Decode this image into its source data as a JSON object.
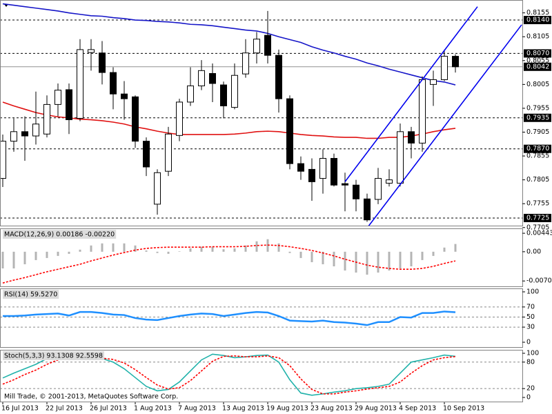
{
  "chart_data": [
    {
      "type": "candlestick",
      "categories": [
        "16 Jul 2013",
        null,
        null,
        null,
        "22 Jul 2013",
        null,
        null,
        null,
        "26 Jul 2013",
        null,
        null,
        null,
        "1 Aug 2013",
        null,
        null,
        null,
        "7 Aug 2013",
        null,
        null,
        null,
        "13 Aug 2013",
        null,
        null,
        null,
        "19 Aug 2013",
        null,
        null,
        null,
        "23 Aug 2013",
        null,
        null,
        null,
        "29 Aug 2013",
        null,
        null,
        null,
        "4 Sep 2013",
        null,
        null,
        null,
        "10 Sep 2013",
        null
      ],
      "open": [
        0.7808,
        0.7886,
        0.7906,
        0.7897,
        0.7901,
        0.7963,
        0.7994,
        0.7934,
        0.8072,
        0.8071,
        0.803,
        0.7985,
        0.7979,
        0.7886,
        0.7754,
        0.7823,
        0.7898,
        0.7968,
        0.8002,
        0.8028,
        0.8004,
        0.7957,
        0.8027,
        0.8071,
        0.8108,
        0.8066,
        0.7975,
        0.7839,
        0.7827,
        0.7808,
        0.785,
        0.7797,
        0.7794,
        0.7765,
        0.7764,
        0.7798,
        0.7798,
        0.7906,
        0.7882,
        0.8005,
        0.8015,
        0.8064
      ],
      "high": [
        0.79,
        0.7934,
        0.7938,
        0.799,
        0.7982,
        0.8007,
        0.8007,
        0.81,
        0.81,
        0.8096,
        0.8041,
        0.8012,
        0.7982,
        0.7894,
        0.7827,
        0.7916,
        0.7975,
        0.8041,
        0.8056,
        0.8049,
        0.8011,
        0.8049,
        0.81,
        0.8115,
        0.8159,
        0.8078,
        0.7982,
        0.7854,
        0.785,
        0.7869,
        0.786,
        0.782,
        0.7805,
        0.7776,
        0.783,
        0.7827,
        0.7923,
        0.7916,
        0.8022,
        0.8034,
        0.8078,
        0.8068
      ],
      "low": [
        0.779,
        0.7864,
        0.7845,
        0.7879,
        0.7894,
        0.7938,
        0.7901,
        0.7928,
        0.8034,
        0.8005,
        0.7953,
        0.7931,
        0.7872,
        0.7813,
        0.7732,
        0.7813,
        0.7886,
        0.796,
        0.7993,
        0.7968,
        0.7934,
        0.7953,
        0.8019,
        0.8049,
        0.8049,
        0.7946,
        0.7827,
        0.7805,
        0.7761,
        0.7776,
        0.7791,
        0.7739,
        0.7739,
        0.7717,
        0.7754,
        0.7791,
        0.7791,
        0.785,
        0.7864,
        0.796,
        0.8012,
        0.803
      ],
      "close": [
        0.7886,
        0.7906,
        0.7897,
        0.7922,
        0.7963,
        0.7993,
        0.7931,
        0.8078,
        0.8078,
        0.803,
        0.7985,
        0.7975,
        0.7886,
        0.7832,
        0.782,
        0.7901,
        0.7968,
        0.8002,
        0.8034,
        0.8007,
        0.796,
        0.8024,
        0.8071,
        0.81,
        0.8066,
        0.7975,
        0.7839,
        0.7823,
        0.7801,
        0.785,
        0.7794,
        0.7794,
        0.7765,
        0.7721,
        0.7808,
        0.7805,
        0.7906,
        0.7882,
        0.8015,
        0.8015,
        0.8064,
        0.8042
      ],
      "up_color": "#ffffff",
      "down_color": "#000000",
      "lines": [
        {
          "color": "#1515c8",
          "values": [
            0.8174,
            0.8171,
            0.8168,
            0.8165,
            0.8162,
            0.8159,
            0.8155,
            0.8152,
            0.8149,
            0.8148,
            0.8145,
            0.8143,
            0.814,
            0.8139,
            0.8137,
            0.8136,
            0.8134,
            0.8131,
            0.813,
            0.8128,
            0.8125,
            0.8122,
            0.8119,
            0.8117,
            0.8112,
            0.8105,
            0.8099,
            0.8093,
            0.8084,
            0.8077,
            0.8071,
            0.8064,
            0.8058,
            0.805,
            0.8044,
            0.8037,
            0.8031,
            0.8025,
            0.8019,
            0.8013,
            0.801,
            0.8004
          ]
        },
        {
          "color": "#e01010",
          "values": [
            0.7968,
            0.796,
            0.7953,
            0.7946,
            0.7941,
            0.7937,
            0.7935,
            0.7932,
            0.7931,
            0.7929,
            0.7926,
            0.7922,
            0.7916,
            0.7912,
            0.7907,
            0.7903,
            0.79,
            0.79,
            0.79,
            0.79,
            0.79,
            0.7901,
            0.7903,
            0.7906,
            0.7907,
            0.7906,
            0.7903,
            0.79,
            0.7898,
            0.7897,
            0.7895,
            0.7894,
            0.7894,
            0.7892,
            0.7892,
            0.7894,
            0.7894,
            0.7897,
            0.7901,
            0.7906,
            0.791,
            0.7913
          ]
        }
      ],
      "levels": [
        {
          "value": 0.814,
          "label": "0.8140"
        },
        {
          "value": 0.807,
          "label": "0.8070"
        },
        0.7935,
        {
          "value": 0.787,
          "label": "0.7870"
        },
        0.7725
      ],
      "last": 0.8042,
      "trendlines": [
        [
          [
            31,
            0.7801
          ],
          [
            43,
            0.8168
          ]
        ],
        [
          [
            33,
            0.7704
          ],
          [
            47,
            0.813
          ]
        ]
      ],
      "trendline_color": "#0000ee",
      "ylim": [
        0.7709,
        0.8182
      ],
      "yticks": [
        0.8155,
        0.8105,
        0.8055,
        0.8005,
        0.7955,
        0.7905,
        0.7855,
        0.7805,
        0.7755,
        0.7705
      ],
      "footer": "Mill Trade, © 2001-2013, MetaQuotes Software Corp."
    },
    {
      "type": "macd",
      "title": "MACD(12,26,9) 0.00186 -0.00220",
      "values": [
        -0.004,
        -0.004,
        -0.003,
        -0.002,
        -0.0015,
        -0.001,
        -0.0005,
        0.0005,
        0.0015,
        0.002,
        0.002,
        0.002,
        0.0015,
        0.0003,
        -0.0003,
        -0.0005,
        0.0001,
        0.0008,
        0.0012,
        0.0012,
        0.0006,
        0.0008,
        0.0015,
        0.0025,
        0.003,
        0.002,
        -0.0003,
        -0.0015,
        -0.0025,
        -0.003,
        -0.0035,
        -0.0045,
        -0.005,
        -0.0055,
        -0.005,
        -0.0045,
        -0.004,
        -0.0035,
        -0.002,
        -0.001,
        0.001,
        0.00186
      ],
      "color": "#b4b4b4",
      "lines": [
        {
          "color": "#ff0000",
          "dash": true,
          "values": [
            -0.0075,
            -0.0068,
            -0.0062,
            -0.0055,
            -0.0048,
            -0.0042,
            -0.0036,
            -0.003,
            -0.0022,
            -0.0015,
            -0.0008,
            -0.0002,
            0.0004,
            0.0008,
            0.001,
            0.0011,
            0.0011,
            0.0011,
            0.0011,
            0.0012,
            0.0012,
            0.0012,
            0.0013,
            0.0015,
            0.0016,
            0.0015,
            0.0012,
            0.0008,
            0.0003,
            -0.0003,
            -0.001,
            -0.0018,
            -0.0025,
            -0.0032,
            -0.0037,
            -0.004,
            -0.0042,
            -0.0042,
            -0.004,
            -0.0035,
            -0.0028,
            -0.0022
          ]
        }
      ],
      "ylim": [
        -0.0083,
        0.0056
      ],
      "yticks": [
        0.00443,
        {
          "value": 0,
          "label": "0.00"
        },
        -0.00701
      ]
    },
    {
      "type": "line",
      "title": "RSI(14) 59.5270",
      "lines": [
        {
          "color": "#1e8fff",
          "width": 2.5,
          "values": [
            52,
            52,
            53,
            55,
            56,
            57,
            53,
            60,
            60,
            58,
            55,
            54,
            48,
            45,
            44,
            48,
            52,
            55,
            57,
            56,
            52,
            55,
            58,
            60,
            59,
            52,
            43,
            42,
            41,
            43,
            40,
            39,
            37,
            34,
            40,
            40,
            50,
            49,
            58,
            58,
            61,
            59.527
          ]
        }
      ],
      "levels": [
        70,
        50,
        30
      ],
      "ylim": [
        -9.6,
        106.8
      ],
      "yticks": [
        100,
        70,
        50,
        30,
        0
      ]
    },
    {
      "type": "line",
      "title": "Stoch(5,3,3) 93.1308 92.5598",
      "lines": [
        {
          "color": "#20b2aa",
          "values": [
            44,
            55,
            65,
            75,
            88,
            90,
            92,
            88,
            90,
            88,
            80,
            65,
            45,
            25,
            15,
            18,
            35,
            60,
            85,
            98,
            95,
            90,
            92,
            95,
            96,
            80,
            40,
            10,
            5,
            8,
            12,
            15,
            20,
            22,
            25,
            30,
            55,
            80,
            85,
            90,
            96,
            93.1308
          ]
        },
        {
          "color": "#ff0000",
          "dash": true,
          "values": [
            30,
            40,
            52,
            62,
            75,
            85,
            90,
            90,
            90,
            89,
            86,
            78,
            63,
            45,
            28,
            19,
            22,
            38,
            60,
            82,
            93,
            94,
            92,
            92,
            94,
            90,
            72,
            42,
            18,
            8,
            8,
            12,
            15,
            19,
            22,
            25,
            35,
            55,
            72,
            85,
            90,
            92.5598
          ]
        }
      ],
      "levels": [
        80,
        20
      ],
      "ylim": [
        -9.4,
        107.8
      ],
      "yticks": [
        100,
        80,
        20,
        0
      ]
    }
  ]
}
